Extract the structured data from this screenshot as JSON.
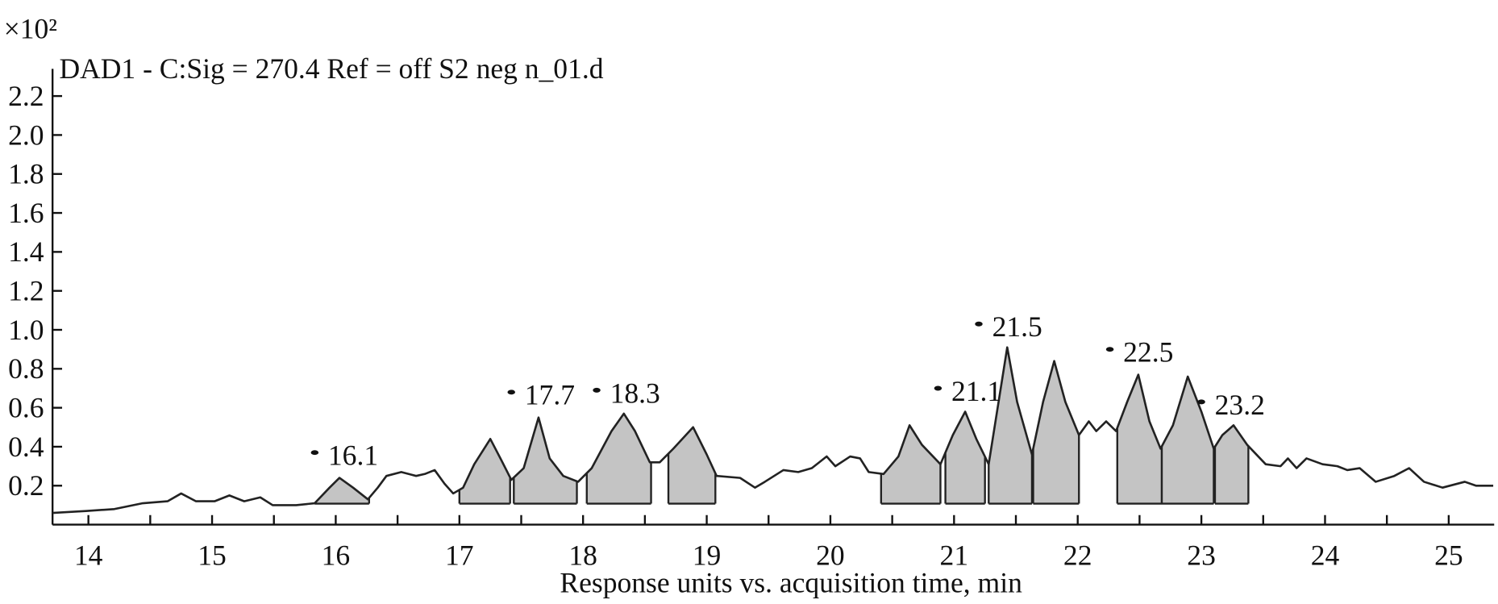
{
  "chart_data": {
    "type": "line",
    "title": "DAD1 - C:Sig = 270.4 Ref = off S2 neg n_01.d",
    "y_multiplier": "×10²",
    "x_label": "Response units vs. acquisition time, min",
    "color": "#222222",
    "area_color": "#c4c4c4",
    "xlim": [
      13.71,
      25.36
    ],
    "ylim": [
      0,
      2.32
    ],
    "xticks": [
      14,
      15,
      16,
      17,
      18,
      19,
      20,
      21,
      22,
      23,
      24,
      25
    ],
    "xminor_ticks": [
      14.5,
      15.5,
      16.5,
      17.5,
      18.5,
      19.5,
      20.5,
      21.5,
      22.5,
      23.5,
      24.5
    ],
    "yticks": [
      0.2,
      0.4,
      0.6,
      0.8,
      {
        "value": 1,
        "label": "1.0"
      },
      1.2,
      1.4,
      1.6,
      1.8,
      {
        "value": 2,
        "label": "2.0"
      },
      2.2
    ],
    "x": [
      13.71,
      13.98,
      14.21,
      14.44,
      14.64,
      14.75,
      14.87,
      15.02,
      15.14,
      15.26,
      15.39,
      15.49,
      15.68,
      15.83,
      15.95,
      16.03,
      16.14,
      16.26,
      16.34,
      16.41,
      16.53,
      16.65,
      16.72,
      16.8,
      16.88,
      16.95,
      17.03,
      17.12,
      17.25,
      17.34,
      17.42,
      17.52,
      17.64,
      17.73,
      17.84,
      17.96,
      18.07,
      18.23,
      18.33,
      18.42,
      18.54,
      18.62,
      18.73,
      18.89,
      19.0,
      19.08,
      19.27,
      19.39,
      19.47,
      19.62,
      19.74,
      19.85,
      19.97,
      20.04,
      20.16,
      20.24,
      20.31,
      20.43,
      20.55,
      20.64,
      20.74,
      20.89,
      20.99,
      21.09,
      21.18,
      21.28,
      21.36,
      21.43,
      21.51,
      21.63,
      21.72,
      21.81,
      21.9,
      22.01,
      22.09,
      22.15,
      22.23,
      22.31,
      22.4,
      22.49,
      22.58,
      22.67,
      22.77,
      22.89,
      23.0,
      23.1,
      23.17,
      23.26,
      23.37,
      23.52,
      23.64,
      23.7,
      23.77,
      23.85,
      23.98,
      24.1,
      24.18,
      24.28,
      24.41,
      24.56,
      24.68,
      24.8,
      24.95,
      25.13,
      25.22,
      25.36
    ],
    "values": [
      0.06,
      0.07,
      0.08,
      0.11,
      0.12,
      0.16,
      0.12,
      0.12,
      0.15,
      0.12,
      0.14,
      0.1,
      0.1,
      0.11,
      0.19,
      0.24,
      0.19,
      0.13,
      0.19,
      0.25,
      0.27,
      0.25,
      0.26,
      0.28,
      0.21,
      0.16,
      0.19,
      0.31,
      0.44,
      0.33,
      0.23,
      0.29,
      0.55,
      0.34,
      0.25,
      0.22,
      0.29,
      0.48,
      0.57,
      0.48,
      0.32,
      0.32,
      0.39,
      0.5,
      0.36,
      0.25,
      0.24,
      0.19,
      0.22,
      0.28,
      0.27,
      0.29,
      0.35,
      0.3,
      0.35,
      0.34,
      0.27,
      0.26,
      0.35,
      0.51,
      0.41,
      0.31,
      0.46,
      0.58,
      0.44,
      0.31,
      0.63,
      0.91,
      0.63,
      0.36,
      0.63,
      0.84,
      0.63,
      0.46,
      0.53,
      0.48,
      0.53,
      0.48,
      0.63,
      0.77,
      0.53,
      0.39,
      0.51,
      0.76,
      0.58,
      0.39,
      0.46,
      0.51,
      0.41,
      0.31,
      0.3,
      0.34,
      0.29,
      0.34,
      0.31,
      0.3,
      0.28,
      0.29,
      0.22,
      0.25,
      0.29,
      0.22,
      0.19,
      0.22,
      0.2,
      0.2
    ],
    "integration_windows": [
      [
        15.83,
        16.27
      ],
      [
        17.0,
        17.41
      ],
      [
        17.44,
        17.95
      ],
      [
        18.03,
        18.55
      ],
      [
        18.69,
        19.07
      ],
      [
        20.41,
        20.89
      ],
      [
        20.93,
        21.25
      ],
      [
        21.28,
        21.63
      ],
      [
        21.64,
        22.01
      ],
      [
        22.32,
        22.68
      ],
      [
        22.68,
        23.1
      ],
      [
        23.11,
        23.38
      ]
    ],
    "annotations": [
      {
        "text": "16.1",
        "x": 15.83,
        "y": 0.37
      },
      {
        "text": "17.7",
        "x": 17.42,
        "y": 0.68
      },
      {
        "text": "18.3",
        "x": 18.11,
        "y": 0.69
      },
      {
        "text": "21.1",
        "x": 20.87,
        "y": 0.7
      },
      {
        "text": "21.5",
        "x": 21.2,
        "y": 1.03
      },
      {
        "text": "22.5",
        "x": 22.26,
        "y": 0.9
      },
      {
        "text": "23.2",
        "x": 23.0,
        "y": 0.63
      }
    ]
  }
}
